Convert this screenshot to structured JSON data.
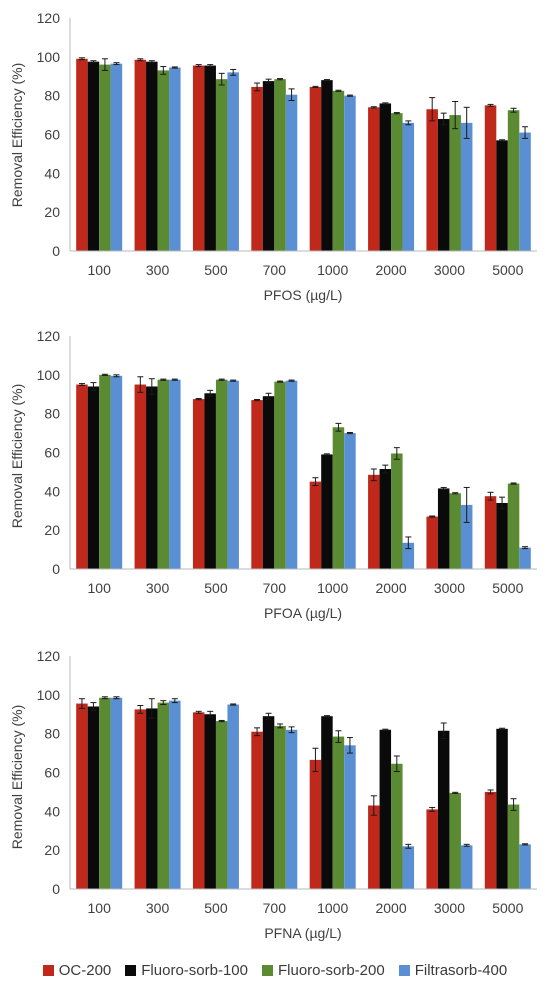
{
  "legend": [
    {
      "name": "OC-200",
      "color": "#c0281c"
    },
    {
      "name": "Fluoro-sorb-100",
      "color": "#0a0a0a"
    },
    {
      "name": "Fluoro-sorb-200",
      "color": "#5a8a32"
    },
    {
      "name": "Filtrasorb-400",
      "color": "#5b8fd3"
    }
  ],
  "chart_data": [
    {
      "type": "bar",
      "xlabel": "PFOS (µg/L)",
      "ylabel": "Removal Efficiency (%)",
      "ylim": [
        0,
        120
      ],
      "yticks": [
        0,
        20,
        40,
        60,
        80,
        100,
        120
      ],
      "categories": [
        "100",
        "300",
        "500",
        "700",
        "1000",
        "2000",
        "3000",
        "5000"
      ],
      "series": [
        {
          "name": "OC-200",
          "color": "#c0281c",
          "values": [
            99,
            98.5,
            95.5,
            84.5,
            84.5,
            74,
            73,
            75
          ],
          "errors": [
            0.5,
            0.5,
            0.5,
            2,
            0.3,
            0.3,
            6,
            0.5
          ]
        },
        {
          "name": "Fluoro-sorb-100",
          "color": "#0a0a0a",
          "values": [
            97.5,
            97.5,
            95.5,
            87.5,
            88,
            76,
            68,
            57
          ],
          "errors": [
            0.5,
            0.5,
            0.5,
            1,
            0.3,
            0.3,
            3,
            0.3
          ]
        },
        {
          "name": "Fluoro-sorb-200",
          "color": "#5a8a32",
          "values": [
            96,
            93,
            88.5,
            88.5,
            82.5,
            71,
            70,
            72.5
          ],
          "errors": [
            3,
            2,
            3,
            0.3,
            0.3,
            0.3,
            7,
            1
          ]
        },
        {
          "name": "Filtrasorb-400",
          "color": "#5b8fd3",
          "values": [
            96.5,
            94.5,
            92,
            80.5,
            80,
            66,
            66,
            61
          ],
          "errors": [
            0.5,
            0.3,
            1.5,
            3,
            0.3,
            1,
            8,
            3
          ]
        }
      ]
    },
    {
      "type": "bar",
      "xlabel": "PFOA (µg/L)",
      "ylabel": "Removal Efficiency (%)",
      "ylim": [
        0,
        120
      ],
      "yticks": [
        0,
        20,
        40,
        60,
        80,
        100,
        120
      ],
      "categories": [
        "100",
        "300",
        "500",
        "700",
        "1000",
        "2000",
        "3000",
        "5000"
      ],
      "series": [
        {
          "name": "OC-200",
          "color": "#c0281c",
          "values": [
            95,
            95,
            87.5,
            87,
            45,
            48.5,
            27,
            37.5
          ],
          "errors": [
            0.5,
            4,
            0.3,
            0.3,
            2,
            3,
            0.3,
            2
          ]
        },
        {
          "name": "Fluoro-sorb-100",
          "color": "#0a0a0a",
          "values": [
            94,
            94,
            90.5,
            89,
            59,
            51.5,
            41.5,
            34
          ],
          "errors": [
            2,
            4,
            1.5,
            1.5,
            0.3,
            2,
            0.5,
            3
          ]
        },
        {
          "name": "Fluoro-sorb-200",
          "color": "#5a8a32",
          "values": [
            100,
            97.5,
            97.5,
            96.5,
            73,
            59.5,
            39,
            44
          ],
          "errors": [
            0.3,
            0.3,
            0.3,
            0.3,
            2,
            3,
            0.3,
            0.3
          ]
        },
        {
          "name": "Filtrasorb-400",
          "color": "#5b8fd3",
          "values": [
            99.5,
            97.5,
            97,
            97,
            70,
            13.5,
            33,
            11
          ],
          "errors": [
            0.5,
            0.3,
            0.3,
            0.3,
            0.3,
            3,
            9,
            0.5
          ]
        }
      ]
    },
    {
      "type": "bar",
      "xlabel": "PFNA (µg/L)",
      "ylabel": "Removal Efficiency (%)",
      "ylim": [
        0,
        120
      ],
      "yticks": [
        0,
        20,
        40,
        60,
        80,
        100,
        120
      ],
      "categories": [
        "100",
        "300",
        "500",
        "700",
        "1000",
        "2000",
        "3000",
        "5000"
      ],
      "series": [
        {
          "name": "OC-200",
          "color": "#c0281c",
          "values": [
            95.5,
            92.5,
            91,
            81,
            66.5,
            43,
            41,
            50
          ],
          "errors": [
            2.5,
            2,
            0.5,
            2,
            6,
            5,
            1,
            1
          ]
        },
        {
          "name": "Fluoro-sorb-100",
          "color": "#0a0a0a",
          "values": [
            94,
            93,
            90,
            89,
            89,
            82,
            81.5,
            82.5
          ],
          "errors": [
            2,
            5,
            1.5,
            1.5,
            0.3,
            0.3,
            4,
            0.3
          ]
        },
        {
          "name": "Fluoro-sorb-200",
          "color": "#5a8a32",
          "values": [
            98.5,
            96,
            86.5,
            84,
            78.5,
            64.5,
            49.5,
            43.5
          ],
          "errors": [
            0.5,
            1,
            0.3,
            1,
            3,
            4,
            0.3,
            3
          ]
        },
        {
          "name": "Filtrasorb-400",
          "color": "#5b8fd3",
          "values": [
            98.5,
            97,
            95,
            82,
            74,
            22,
            22.5,
            23
          ],
          "errors": [
            0.5,
            1,
            0.3,
            1.5,
            4,
            1,
            0.5,
            0.3
          ]
        }
      ]
    }
  ]
}
